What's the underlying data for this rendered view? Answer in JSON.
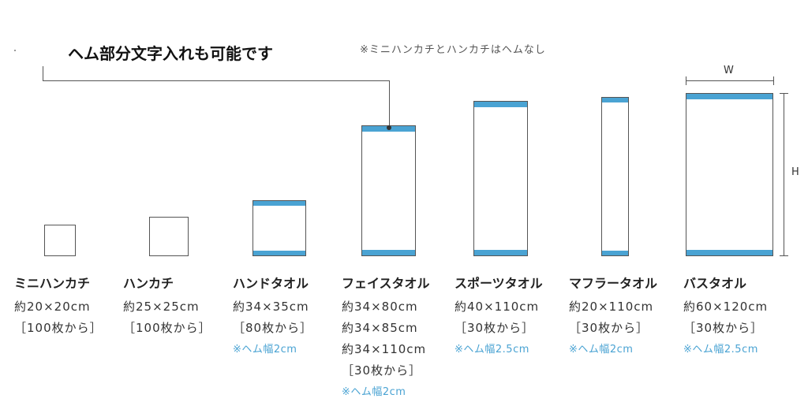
{
  "header": {
    "title": "ヘム部分文字入れも可能です",
    "note": "※ミニハンカチとハンカチはヘムなし"
  },
  "dimensions": {
    "w_label": "W",
    "h_label": "H"
  },
  "colors": {
    "hem": "#4aa3d3",
    "outline": "#555555"
  },
  "items": [
    {
      "name": "ミニハンカチ",
      "size1": "約20×20cm",
      "min": "［100枚から］"
    },
    {
      "name": "ハンカチ",
      "size1": "約25×25cm",
      "min": "［100枚から］"
    },
    {
      "name": "ハンドタオル",
      "size1": "約34×35cm",
      "min": "［80枚から］",
      "hem": "※ヘム幅2cm"
    },
    {
      "name": "フェイスタオル",
      "size1": "約34×80cm",
      "size2": "約34×85cm",
      "size3": "約34×110cm",
      "min": "［30枚から］",
      "hem": "※ヘム幅2cm"
    },
    {
      "name": "スポーツタオル",
      "size1": "約40×110cm",
      "min": "［30枚から］",
      "hem": "※ヘム幅2.5cm"
    },
    {
      "name": "マフラータオル",
      "size1": "約20×110cm",
      "min": "［30枚から］",
      "hem": "※ヘム幅2cm"
    },
    {
      "name": "バスタオル",
      "size1": "約60×120cm",
      "min": "［30枚から］",
      "hem": "※ヘム幅2.5cm"
    }
  ]
}
